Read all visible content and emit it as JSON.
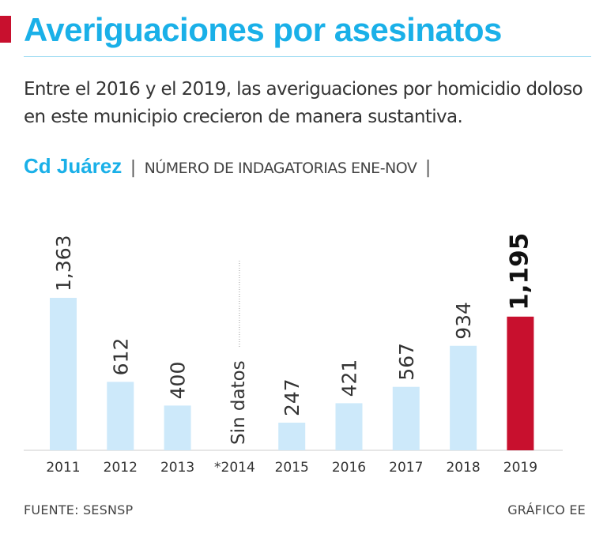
{
  "header": {
    "title": "Averiguaciones por asesinatos",
    "subtitle": "Entre el 2016 y el 2019, las averiguaciones por homicidio doloso en este municipio crecieron de manera sustantiva.",
    "location": "Cd Juárez",
    "separator": "|",
    "metric_label": "NÚMERO DE INDAGATORIAS ENE-NOV"
  },
  "colors": {
    "accent": "#1ab0e8",
    "bar": "#cde9fa",
    "highlight": "#c8102e",
    "text": "#333333"
  },
  "chart_data": {
    "type": "bar",
    "title": "",
    "xlabel": "",
    "ylabel": "NÚMERO DE INDAGATORIAS ENE-NOV",
    "categories": [
      "2011",
      "2012",
      "2013",
      "*2014",
      "2015",
      "2016",
      "2017",
      "2018",
      "2019"
    ],
    "values": [
      1363,
      612,
      400,
      null,
      247,
      421,
      567,
      934,
      1195
    ],
    "labels": [
      "1,363",
      "612",
      "400",
      "Sin datos",
      "247",
      "421",
      "567",
      "934",
      "1,195"
    ],
    "highlight_index": 8,
    "ylim": [
      0,
      1363
    ],
    "grid": false
  },
  "footer": {
    "source": "FUENTE: SESNSP",
    "credit": "GRÁFICO EE"
  }
}
